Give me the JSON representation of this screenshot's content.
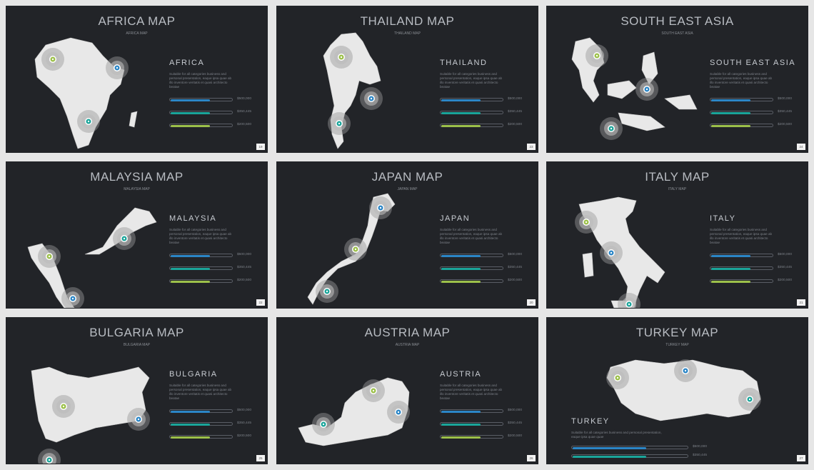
{
  "colors": {
    "blue": "#2b86c7",
    "teal": "#1aa59a",
    "green": "#9cc04a",
    "slide_bg": "#222428",
    "map": "#e8e8e8"
  },
  "slides": [
    {
      "title": "AFRICA MAP",
      "subtitle": "AFRICA MAP",
      "heading": "AFRICA",
      "desc": "Suitable for all categories business and personal presentation, eaque ipsa quae ab illo inventore veritatis et quasi architecto beatae",
      "values": [
        "$500,000",
        "$350,445",
        "$200,500"
      ],
      "fills": [
        0.65,
        0.65,
        0.65
      ],
      "page": "19"
    },
    {
      "title": "THAILAND MAP",
      "subtitle": "THAILAND MAP",
      "heading": "THAILAND",
      "desc": "Suitable for all categories business and personal presentation, eaque ipsa quae ab illo inventore veritatis et quasi architecto beatae",
      "values": [
        "$500,000",
        "$350,445",
        "$200,500"
      ],
      "fills": [
        0.65,
        0.65,
        0.65
      ],
      "page": "23"
    },
    {
      "title": "SOUTH EAST ASIA",
      "subtitle": "SOUTH EAST ASIA",
      "heading": "SOUTH EAST ASIA",
      "desc": "Suitable for all categories business and personal presentation, eaque ipsa quae ab illo inventore veritatis et quasi architecto beatae",
      "values": [
        "$500,000",
        "$350,445",
        "$200,500"
      ],
      "fills": [
        0.65,
        0.65,
        0.65
      ],
      "page": "24"
    },
    {
      "title": "MALAYSIA MAP",
      "subtitle": "MALAYSIA MAP",
      "heading": "MALAYSIA",
      "desc": "Suitable for all categories business and personal presentation, eaque ipsa quae ab illo inventore veritatis et quasi architecto beatae",
      "values": [
        "$500,000",
        "$350,445",
        "$200,500"
      ],
      "fills": [
        0.65,
        0.65,
        0.65
      ],
      "page": "22"
    },
    {
      "title": "JAPAN MAP",
      "subtitle": "JAPAN MAP",
      "heading": "JAPAN",
      "desc": "Suitable for all categories business and personal presentation, eaque ipsa quae ab illo inventore veritatis et quasi architecto beatae",
      "values": [
        "$500,000",
        "$350,445",
        "$200,500"
      ],
      "fills": [
        0.65,
        0.65,
        0.65
      ],
      "page": "20"
    },
    {
      "title": "ITALY MAP",
      "subtitle": "ITALY MAP",
      "heading": "ITALY",
      "desc": "Suitable for all categories business and personal presentation, eaque ipsa quae ab illo inventore veritatis et quasi architecto beatae",
      "values": [
        "$500,000",
        "$350,445",
        "$200,500"
      ],
      "fills": [
        0.65,
        0.65,
        0.65
      ],
      "page": "21"
    },
    {
      "title": "BULGARIA MAP",
      "subtitle": "BULGARIA MAP",
      "heading": "BULGARIA",
      "desc": "Suitable for all categories business and personal presentation, eaque ipsa quae ab illo inventore veritatis et quasi architecto beatae",
      "values": [
        "$500,000",
        "$350,445",
        "$200,500"
      ],
      "fills": [
        0.65,
        0.65,
        0.65
      ],
      "page": "25"
    },
    {
      "title": "AUSTRIA MAP",
      "subtitle": "AUSTRIA MAP",
      "heading": "AUSTRIA",
      "desc": "Suitable for all categories business and personal presentation, eaque ipsa quae ab illo inventore veritatis et quasi architecto beatae",
      "values": [
        "$500,000",
        "$350,445",
        "$200,500"
      ],
      "fills": [
        0.65,
        0.65,
        0.65
      ],
      "page": "26"
    },
    {
      "title": "TURKEY MAP",
      "subtitle": "TURKEY MAP",
      "heading": "TURKEY",
      "desc": "Suitable for all categories business and personal presentation, eaque ipsa quae quae",
      "values": [
        "$500,000",
        "$350,445"
      ],
      "fills": [
        0.65,
        0.65
      ],
      "page": "27"
    }
  ]
}
